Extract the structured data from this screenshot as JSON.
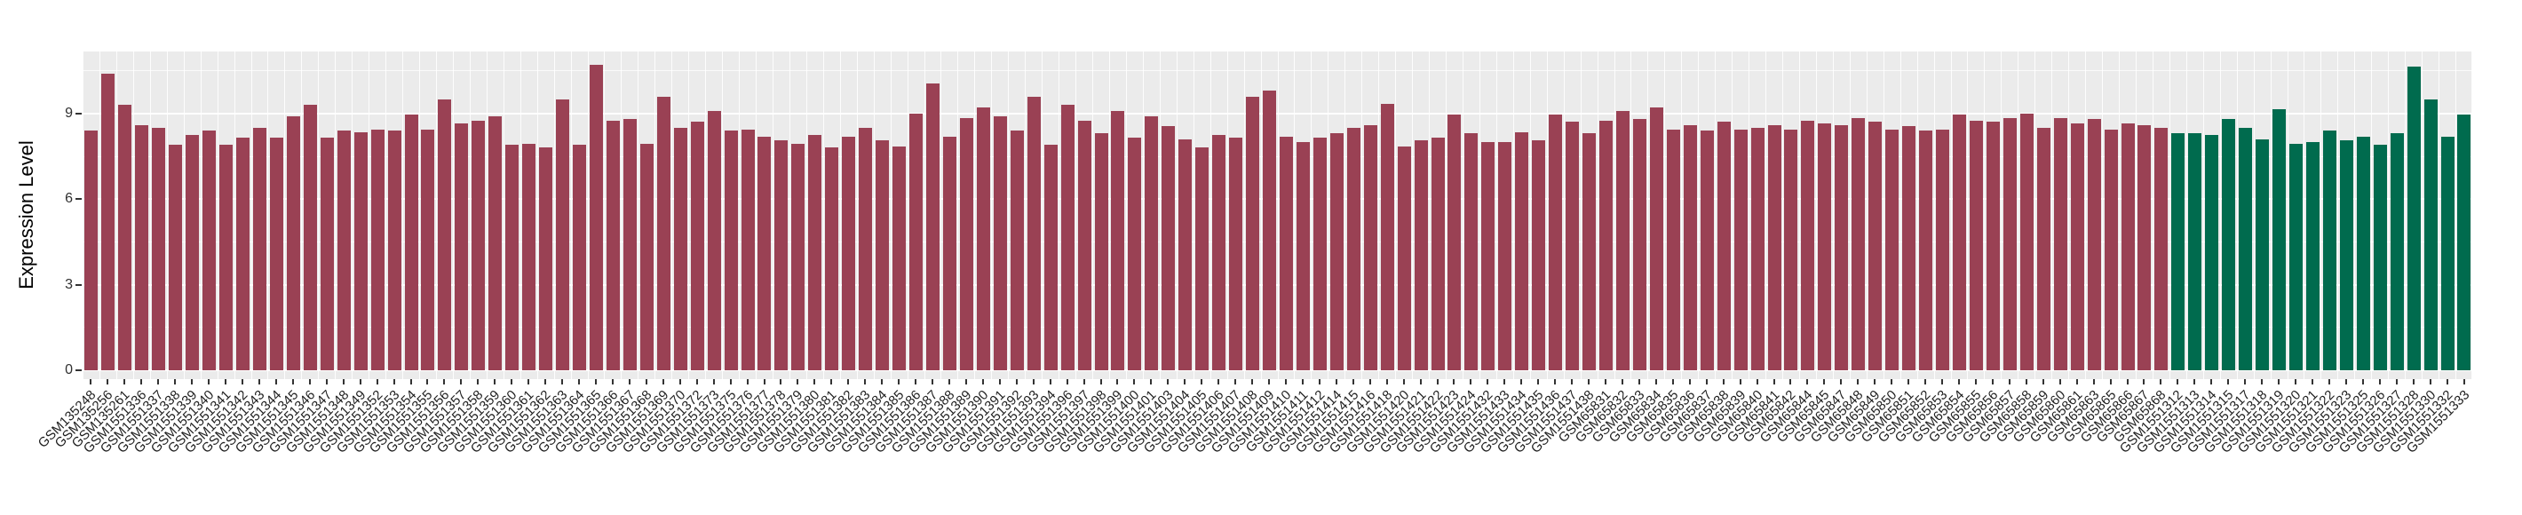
{
  "figure": {
    "background": "#ffffff",
    "panel_background": "#ebebeb",
    "grid_color": "#ffffff",
    "axis_text_color": "#303030",
    "tick_mark_color": "#333333"
  },
  "chart_data": {
    "type": "bar",
    "title": "",
    "xlabel": "",
    "ylabel": "Expression Level",
    "ylim": [
      0,
      11.2
    ],
    "yticks": [
      0,
      3,
      6,
      9
    ],
    "yticks_minor": [
      1.5,
      4.5,
      7.5,
      10.5
    ],
    "grid": "on",
    "legend": "none",
    "x_tick_rotation_deg": 45,
    "series": [
      {
        "name": "red-group",
        "color": "#9a4154",
        "from": 0,
        "to": 123
      },
      {
        "name": "green-group",
        "color": "#006b4e",
        "from": 124,
        "to": 141
      }
    ],
    "categories": [
      "GSM135248",
      "GSM135256",
      "GSM135261",
      "GSM1551336",
      "GSM1551337",
      "GSM1551338",
      "GSM1551339",
      "GSM1551340",
      "GSM1551341",
      "GSM1551342",
      "GSM1551343",
      "GSM1551344",
      "GSM1551345",
      "GSM1551346",
      "GSM1551347",
      "GSM1551348",
      "GSM1551349",
      "GSM1551352",
      "GSM1551353",
      "GSM1551354",
      "GSM1551355",
      "GSM1551356",
      "GSM1551357",
      "GSM1551358",
      "GSM1551359",
      "GSM1551360",
      "GSM1551361",
      "GSM1551362",
      "GSM1551363",
      "GSM1551364",
      "GSM1551365",
      "GSM1551366",
      "GSM1551367",
      "GSM1551368",
      "GSM1551369",
      "GSM1551370",
      "GSM1551372",
      "GSM1551373",
      "GSM1551375",
      "GSM1551376",
      "GSM1551377",
      "GSM1551378",
      "GSM1551379",
      "GSM1551380",
      "GSM1551381",
      "GSM1551382",
      "GSM1551383",
      "GSM1551384",
      "GSM1551385",
      "GSM1551386",
      "GSM1551387",
      "GSM1551388",
      "GSM1551389",
      "GSM1551390",
      "GSM1551391",
      "GSM1551392",
      "GSM1551393",
      "GSM1551394",
      "GSM1551396",
      "GSM1551397",
      "GSM1551398",
      "GSM1551399",
      "GSM1551400",
      "GSM1551401",
      "GSM1551403",
      "GSM1551404",
      "GSM1551405",
      "GSM1551406",
      "GSM1551407",
      "GSM1551408",
      "GSM1551409",
      "GSM1551410",
      "GSM1551411",
      "GSM1551412",
      "GSM1551414",
      "GSM1551415",
      "GSM1551416",
      "GSM1551418",
      "GSM1551420",
      "GSM1551421",
      "GSM1551422",
      "GSM1551423",
      "GSM1551424",
      "GSM1551432",
      "GSM1551433",
      "GSM1551434",
      "GSM1551435",
      "GSM1551436",
      "GSM1551437",
      "GSM1551438",
      "GSM65831",
      "GSM65832",
      "GSM65833",
      "GSM65834",
      "GSM65835",
      "GSM65836",
      "GSM65837",
      "GSM65838",
      "GSM65839",
      "GSM65840",
      "GSM65841",
      "GSM65842",
      "GSM65844",
      "GSM65845",
      "GSM65847",
      "GSM65848",
      "GSM65849",
      "GSM65850",
      "GSM65851",
      "GSM65852",
      "GSM65853",
      "GSM65854",
      "GSM65855",
      "GSM65856",
      "GSM65857",
      "GSM65858",
      "GSM65859",
      "GSM65860",
      "GSM65861",
      "GSM65863",
      "GSM65865",
      "GSM65866",
      "GSM65867",
      "GSM65868",
      "GSM1551312",
      "GSM1551313",
      "GSM1551314",
      "GSM1551315",
      "GSM1551317",
      "GSM1551318",
      "GSM1551319",
      "GSM1551320",
      "GSM1551321",
      "GSM1551322",
      "GSM1551323",
      "GSM1551325",
      "GSM1551326",
      "GSM1551327",
      "GSM1551328",
      "GSM1551330",
      "GSM1551332",
      "GSM1551333"
    ],
    "values": [
      8.4,
      10.4,
      9.3,
      8.6,
      8.5,
      7.9,
      8.25,
      8.4,
      7.9,
      8.15,
      8.5,
      8.15,
      8.9,
      9.3,
      8.15,
      8.4,
      8.35,
      8.45,
      8.4,
      8.95,
      8.45,
      9.5,
      8.65,
      8.75,
      8.9,
      7.9,
      7.95,
      7.8,
      9.5,
      7.9,
      10.7,
      8.75,
      8.8,
      7.95,
      9.6,
      8.5,
      8.7,
      9.1,
      8.4,
      8.45,
      8.2,
      8.05,
      7.95,
      8.25,
      7.8,
      8.2,
      8.5,
      8.05,
      7.85,
      9.0,
      10.05,
      8.2,
      8.85,
      9.2,
      8.9,
      8.4,
      9.6,
      7.9,
      9.3,
      8.75,
      8.3,
      9.1,
      8.15,
      8.9,
      8.55,
      8.1,
      7.8,
      8.25,
      8.15,
      9.6,
      9.8,
      8.2,
      8.0,
      8.15,
      8.3,
      8.5,
      8.6,
      9.35,
      7.85,
      8.05,
      8.15,
      8.95,
      8.3,
      8.0,
      8.0,
      8.35,
      8.05,
      8.95,
      8.7,
      8.3,
      8.75,
      9.1,
      8.8,
      9.2,
      8.45,
      8.6,
      8.4,
      8.7,
      8.45,
      8.5,
      8.6,
      8.45,
      8.75,
      8.65,
      8.6,
      8.85,
      8.7,
      8.45,
      8.55,
      8.4,
      8.45,
      8.95,
      8.75,
      8.7,
      8.85,
      9.0,
      8.5,
      8.85,
      8.65,
      8.8,
      8.45,
      8.65,
      8.6,
      8.5,
      8.3,
      8.3,
      8.25,
      8.8,
      8.5,
      8.1,
      9.15,
      7.95,
      8.0,
      8.4,
      8.05,
      8.2,
      7.9,
      8.3,
      10.65,
      9.5,
      8.2,
      8.95
    ]
  }
}
